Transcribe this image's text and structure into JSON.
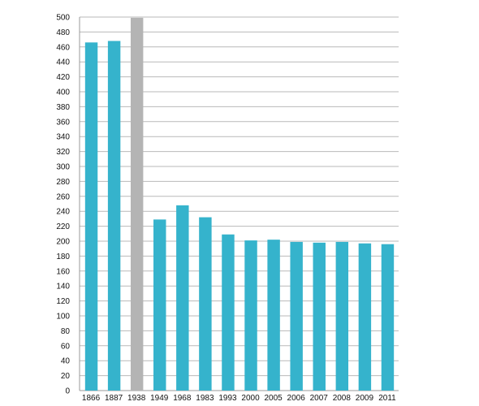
{
  "chart_data": {
    "type": "bar",
    "title": "",
    "xlabel": "",
    "ylabel": "",
    "categories": [
      "1866",
      "1887",
      "1938",
      "1949",
      "1968",
      "1983",
      "1993",
      "2000",
      "2005",
      "2006",
      "2007",
      "2008",
      "2009",
      "2011"
    ],
    "values": [
      466,
      468,
      499,
      229,
      248,
      232,
      209,
      201,
      202,
      199,
      198,
      199,
      197,
      196
    ],
    "ylim": [
      0,
      500
    ],
    "ytick_step": 20,
    "grid": true,
    "legend": "none",
    "colors": {
      "default_bar": "#35b3cc",
      "highlight_bar": "#b4b4b4",
      "highlight_category": "1938"
    }
  }
}
